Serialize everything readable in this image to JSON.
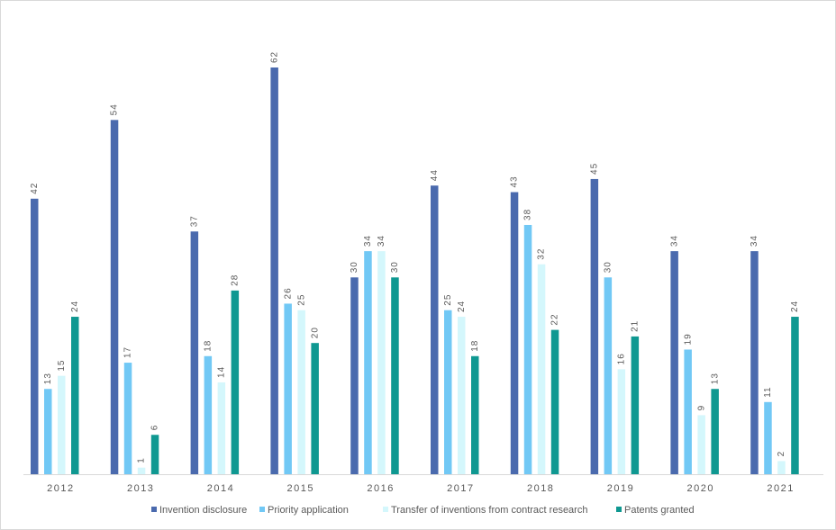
{
  "chart_data": {
    "type": "bar",
    "title": "",
    "xlabel": "",
    "ylabel": "",
    "ylim": [
      0,
      62
    ],
    "grid": false,
    "legend_position": "bottom",
    "categories": [
      "2012",
      "2013",
      "2014",
      "2015",
      "2016",
      "2017",
      "2018",
      "2019",
      "2020",
      "2021"
    ],
    "series": [
      {
        "name": "Invention disclosure",
        "color": "#4a6aae",
        "values": [
          42,
          54,
          37,
          62,
          30,
          44,
          43,
          45,
          34,
          34
        ]
      },
      {
        "name": "Priority application",
        "color": "#71c8f5",
        "values": [
          13,
          17,
          18,
          26,
          34,
          25,
          38,
          30,
          19,
          11
        ]
      },
      {
        "name": "Transfer of inventions from contract research",
        "color": "#d4f7fc",
        "values": [
          15,
          1,
          14,
          25,
          34,
          24,
          32,
          16,
          9,
          2
        ]
      },
      {
        "name": "Patents granted",
        "color": "#0f9891",
        "values": [
          24,
          6,
          28,
          20,
          30,
          18,
          22,
          21,
          13,
          24
        ]
      }
    ]
  }
}
